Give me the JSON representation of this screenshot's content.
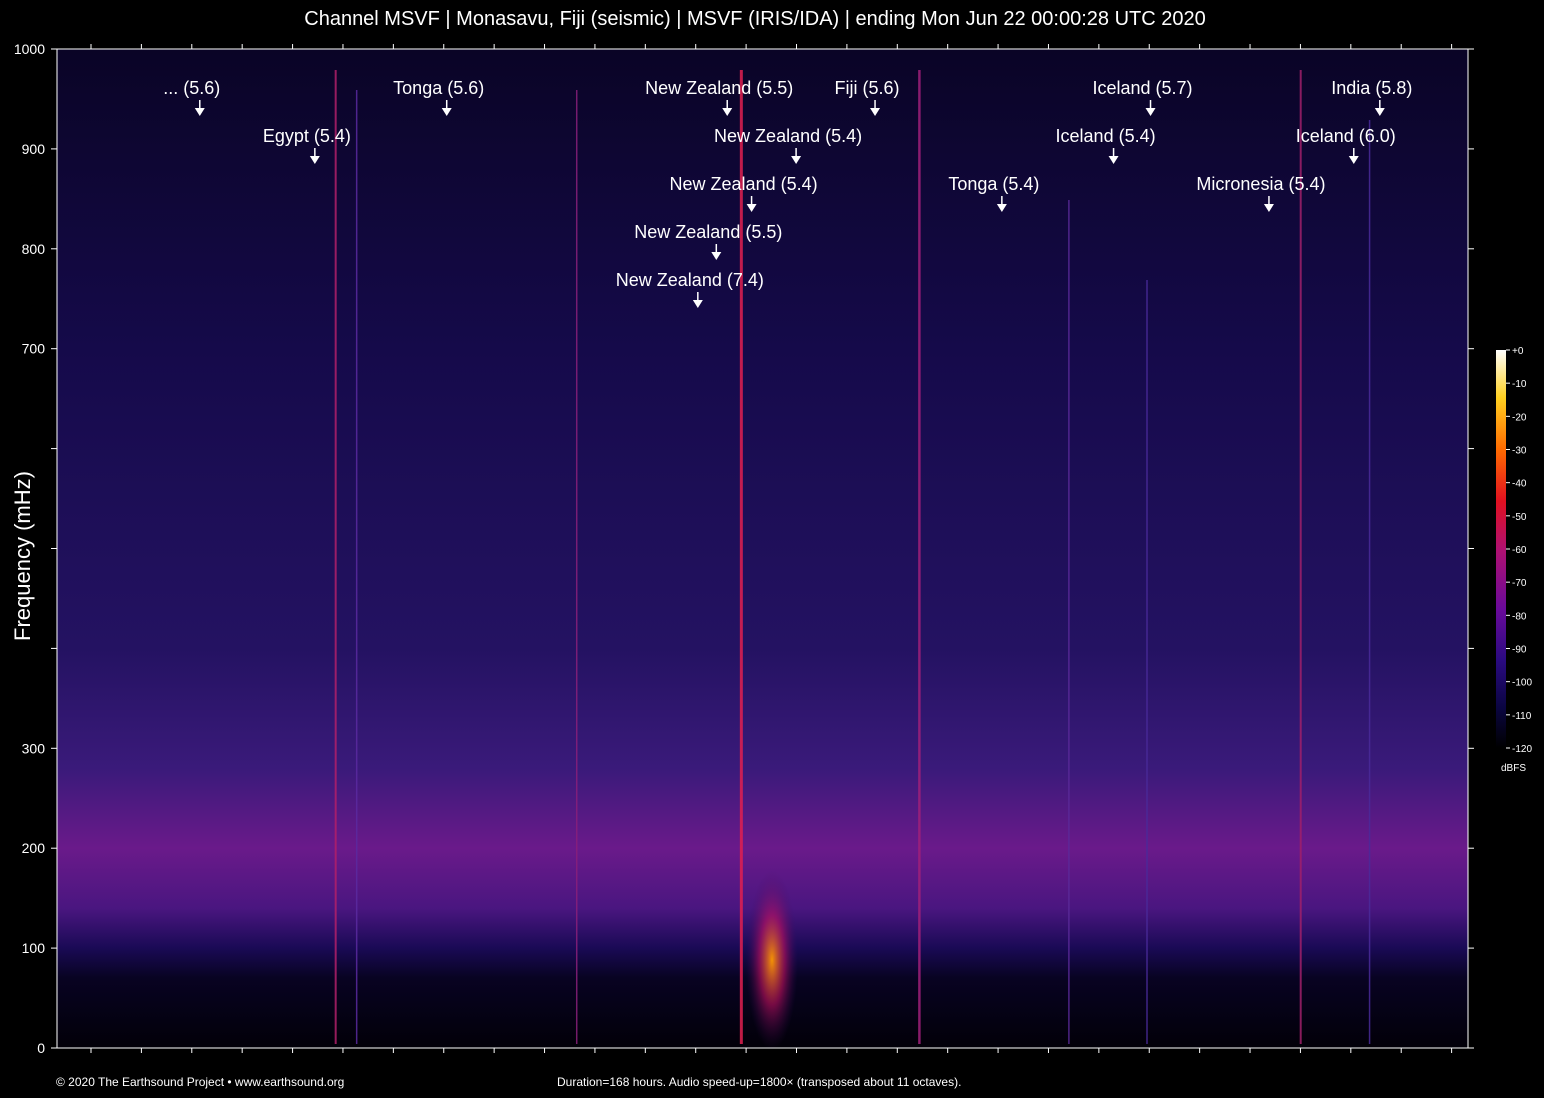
{
  "title": "Channel MSVF | Monasavu, Fiji (seismic) | MSVF (IRIS/IDA) | ending Mon Jun 22 00:00:28 UTC 2020",
  "footer": {
    "copyright": "© 2020 The Earthsound Project • www.earthsound.org",
    "duration": "Duration=168 hours. Audio speed-up=1800× (transposed about 11 octaves)."
  },
  "colors": {
    "background": "#000000",
    "noise_low": "#1a0a5a",
    "noise_band": "#7a1a8a",
    "event_line": "#c0207a",
    "hot": "#ff8a00",
    "marker": "#ffffff"
  },
  "chart_data": {
    "type": "heatmap",
    "ylabel": "Frequency (mHz)",
    "ylim": [
      0,
      1000
    ],
    "y_ticks": [
      0,
      100,
      200,
      300,
      400,
      500,
      600,
      700,
      800,
      900,
      1000
    ],
    "y_tick_labels": [
      "0",
      "100",
      "200",
      "300",
      "",
      "",
      "",
      "700",
      "800",
      "900",
      "1000"
    ],
    "x_range_hours": [
      0,
      168
    ],
    "colorbar": {
      "unit": "dBFS",
      "range": [
        -120,
        0
      ],
      "ticks": [
        "+0",
        "-10",
        "-20",
        "-30",
        "-40",
        "-50",
        "-60",
        "-70",
        "-80",
        "-90",
        "-100",
        "-110",
        "-120"
      ]
    },
    "events": [
      {
        "label": "... (5.6)",
        "hour": 17.0
      },
      {
        "label": "Egypt (5.4)",
        "hour": 30.7
      },
      {
        "label": "Tonga (5.6)",
        "hour": 46.4
      },
      {
        "label": "New Zealand (5.5)",
        "hour": 79.8
      },
      {
        "label": "New Zealand (5.4)",
        "hour": 88.0
      },
      {
        "label": "New Zealand (5.4)",
        "hour": 82.7
      },
      {
        "label": "New Zealand (5.5)",
        "hour": 78.5
      },
      {
        "label": "New Zealand (7.4)",
        "hour": 76.3
      },
      {
        "label": "Fiji (5.6)",
        "hour": 97.4
      },
      {
        "label": "Tonga (5.4)",
        "hour": 112.5
      },
      {
        "label": "Iceland (5.7)",
        "hour": 130.2
      },
      {
        "label": "Iceland (5.4)",
        "hour": 125.8
      },
      {
        "label": "Micronesia (5.4)",
        "hour": 144.3
      },
      {
        "label": "India (5.8)",
        "hour": 157.5
      },
      {
        "label": "Iceland (6.0)",
        "hour": 154.4
      }
    ]
  }
}
